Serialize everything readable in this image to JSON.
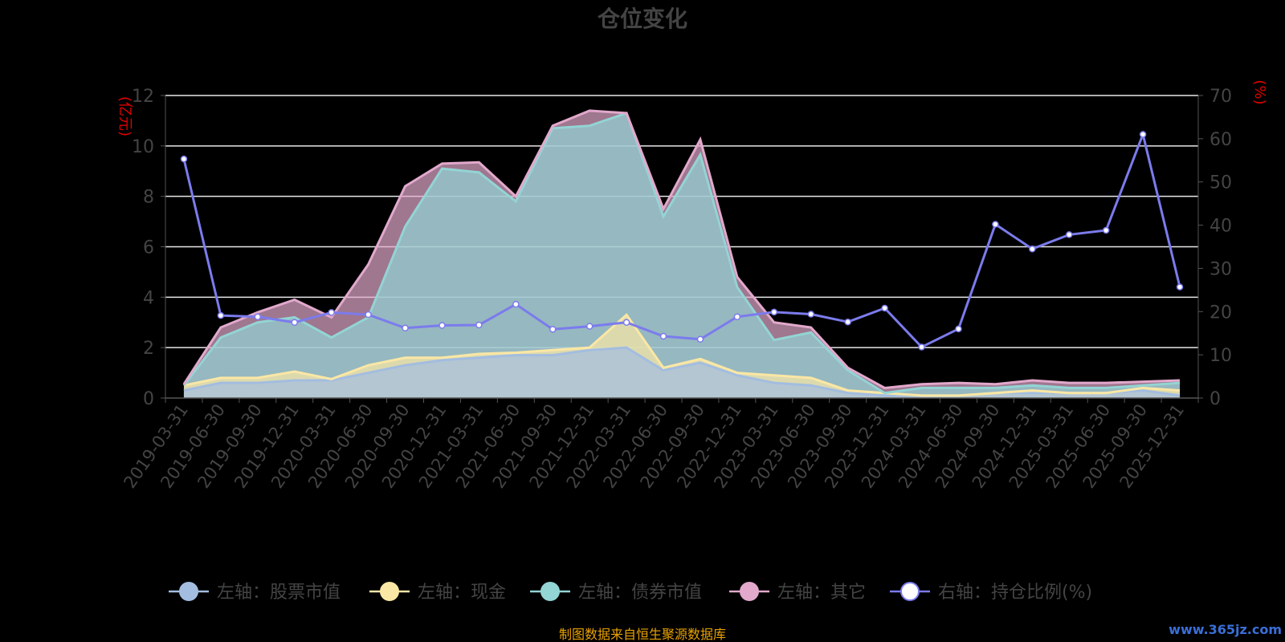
{
  "chart_data": {
    "type": "area",
    "title": "仓位变化",
    "left_axis_label": "(亿元)",
    "right_axis_label": "(%)",
    "left_ylim": [
      0,
      12
    ],
    "left_ticks": [
      "0",
      "2",
      "4",
      "6",
      "8",
      "10",
      "12"
    ],
    "right_ylim": [
      0,
      70
    ],
    "right_ticks": [
      "0",
      "10",
      "20",
      "30",
      "40",
      "50",
      "60",
      "70"
    ],
    "grid": true,
    "legend_position": "bottom",
    "x": [
      "2019-03-31",
      "2019-06-30",
      "2019-09-30",
      "2019-12-31",
      "2020-03-31",
      "2020-06-30",
      "2020-09-30",
      "2020-12-31",
      "2021-03-31",
      "2021-06-30",
      "2021-09-30",
      "2021-12-31",
      "2022-03-31",
      "2022-06-30",
      "2022-09-30",
      "2022-12-31",
      "2023-03-31",
      "2023-06-30",
      "2023-09-30",
      "2023-12-31",
      "2024-03-31",
      "2024-06-30",
      "2024-09-30",
      "2024-12-31",
      "2025-03-31",
      "2025-06-30",
      "2025-09-30",
      "2025-12-31"
    ],
    "stacked_series": [
      {
        "name": "左轴：股票市值",
        "axis": "left",
        "color": "#a3bde0",
        "values": [
          0.3,
          0.6,
          0.6,
          0.7,
          0.7,
          1.0,
          1.3,
          1.5,
          1.6,
          1.7,
          1.7,
          1.9,
          2.0,
          1.1,
          1.4,
          0.9,
          0.6,
          0.5,
          0.2,
          0.1,
          0.1,
          0.1,
          0.2,
          0.2,
          0.2,
          0.2,
          0.3,
          0.1
        ]
      },
      {
        "name": "左轴：现金",
        "axis": "left",
        "color": "#fae7a5",
        "values": [
          0.2,
          0.2,
          0.2,
          0.35,
          0.05,
          0.3,
          0.3,
          0.1,
          0.15,
          0.1,
          0.2,
          0.1,
          1.3,
          0.1,
          0.15,
          0.1,
          0.3,
          0.3,
          0.1,
          0.1,
          0.0,
          0.0,
          0.0,
          0.1,
          0.0,
          0.0,
          0.1,
          0.2
        ]
      },
      {
        "name": "左轴：债券市值",
        "axis": "left",
        "color": "#93d4d4",
        "values": [
          0.0,
          1.6,
          2.2,
          2.15,
          1.65,
          1.9,
          5.2,
          7.5,
          7.2,
          6.0,
          8.8,
          8.8,
          8.0,
          6.0,
          8.1,
          3.4,
          1.4,
          1.8,
          0.8,
          0.0,
          0.3,
          0.3,
          0.2,
          0.2,
          0.2,
          0.2,
          0.1,
          0.3
        ]
      },
      {
        "name": "左轴：其它",
        "axis": "left",
        "color": "#e2a9cc",
        "values": [
          0.05,
          0.4,
          0.4,
          0.7,
          0.8,
          2.1,
          1.6,
          0.2,
          0.4,
          0.2,
          0.1,
          0.6,
          0.0,
          0.3,
          0.6,
          0.4,
          0.7,
          0.2,
          0.1,
          0.2,
          0.15,
          0.2,
          0.15,
          0.2,
          0.2,
          0.2,
          0.15,
          0.1
        ]
      }
    ],
    "line_series": {
      "name": "右轴：持仓比例(%)",
      "axis": "right",
      "color": "#7b7bed",
      "values": [
        55.3,
        19.1,
        18.8,
        17.5,
        19.8,
        19.3,
        16.2,
        16.8,
        16.9,
        21.7,
        15.9,
        16.6,
        17.5,
        14.3,
        13.6,
        18.8,
        19.9,
        19.4,
        17.6,
        20.8,
        11.8,
        16.0,
        40.2,
        34.5,
        37.8,
        38.8,
        61.0,
        25.7
      ]
    },
    "footer_source": "制图数据来自恒生聚源数据库",
    "watermark": "www.365jz.com"
  }
}
